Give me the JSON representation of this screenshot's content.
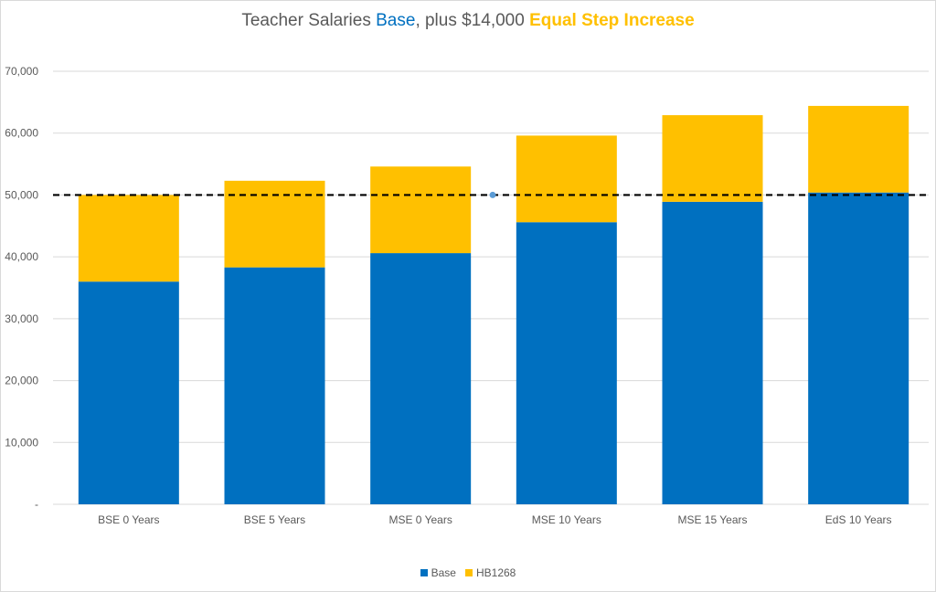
{
  "title": {
    "part1": "Teacher Salaries ",
    "part2": "Base",
    "part3": ", plus $14,000 ",
    "part4": "Equal Step Increase"
  },
  "colors": {
    "base": "#0070c0",
    "increase": "#ffc000",
    "reference": "#000000",
    "grid": "#d9d9d9"
  },
  "legend": {
    "base": "Base",
    "increase": "HB1268"
  },
  "chart_data": {
    "type": "bar",
    "stacked": true,
    "title": "Teacher Salaries Base, plus $14,000 Equal Step Increase",
    "categories": [
      "BSE 0 Years",
      "BSE 5 Years",
      "MSE 0 Years",
      "MSE 10 Years",
      "MSE 15 Years",
      "EdS 10 Years"
    ],
    "series": [
      {
        "name": "Base",
        "values": [
          36000,
          38300,
          40600,
          45600,
          48900,
          50400
        ]
      },
      {
        "name": "HB1268",
        "values": [
          14000,
          14000,
          14000,
          14000,
          14000,
          14000
        ]
      }
    ],
    "reference_line": {
      "value": 50000,
      "style": "dashed"
    },
    "ylim": [
      0,
      70000
    ],
    "yticks": [
      "-",
      "10,000",
      "20,000",
      "30,000",
      "40,000",
      "50,000",
      "60,000",
      "70,000"
    ],
    "grid": true,
    "legend_position": "bottom"
  }
}
